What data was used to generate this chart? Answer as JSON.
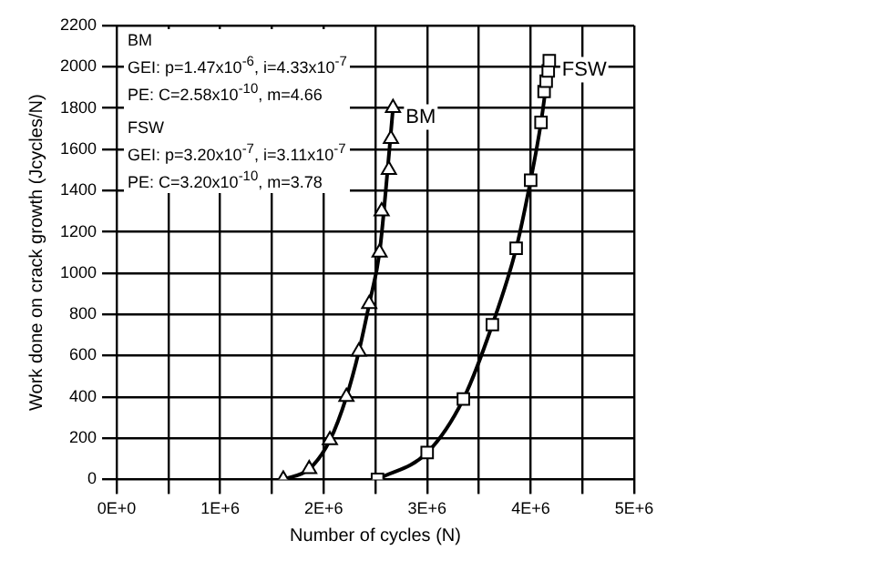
{
  "chart_data": {
    "type": "scatter",
    "xlabel": "Number of cycles (N)",
    "ylabel": "Work done on crack growth (Jcycles/N)",
    "xlim": [
      0,
      5000000
    ],
    "ylim": [
      0,
      2200
    ],
    "xticks": [
      {
        "value": 0,
        "label": "0E+0"
      },
      {
        "value": 500000,
        "label": null
      },
      {
        "value": 1000000,
        "label": "1E+6"
      },
      {
        "value": 1500000,
        "label": null
      },
      {
        "value": 2000000,
        "label": "2E+6"
      },
      {
        "value": 2500000,
        "label": null
      },
      {
        "value": 3000000,
        "label": "3E+6"
      },
      {
        "value": 3500000,
        "label": null
      },
      {
        "value": 4000000,
        "label": "4E+6"
      },
      {
        "value": 4500000,
        "label": null
      },
      {
        "value": 5000000,
        "label": "5E+6"
      }
    ],
    "yticks": [
      0,
      200,
      400,
      600,
      800,
      1000,
      1200,
      1400,
      1600,
      1800,
      2000,
      2200
    ],
    "grid": true,
    "legend": false,
    "series": [
      {
        "type": "scatter",
        "marker": "triangle",
        "color": "#000000",
        "x": [
          1610000,
          1860000,
          2060000,
          2220000,
          2340000,
          2440000,
          2540000,
          2560000,
          2630000,
          2650000,
          2670000
        ],
        "values": [
          0,
          50,
          190,
          400,
          620,
          850,
          1100,
          1300,
          1500,
          1650,
          1800
        ]
      },
      {
        "type": "scatter",
        "marker": "square",
        "color": "#000000",
        "x": [
          2520000,
          3000000,
          3350000,
          3630000,
          3860000,
          4000000,
          4100000,
          4130000,
          4150000,
          4170000,
          4180000
        ],
        "values": [
          0,
          130,
          390,
          750,
          1120,
          1450,
          1730,
          1880,
          1930,
          1980,
          2030
        ]
      },
      {
        "type": "line",
        "marker": "none",
        "color": "#000000",
        "x": [
          1610000,
          1860000,
          2060000,
          2220000,
          2340000,
          2440000,
          2540000,
          2600000,
          2670000
        ],
        "values": [
          0,
          50,
          190,
          400,
          620,
          850,
          1100,
          1400,
          1800
        ]
      },
      {
        "type": "line",
        "marker": "none",
        "color": "#000000",
        "x": [
          2520000,
          3000000,
          3350000,
          3630000,
          3860000,
          4000000,
          4100000,
          4180000
        ],
        "values": [
          0,
          130,
          390,
          750,
          1120,
          1450,
          1730,
          2030
        ]
      }
    ],
    "annotations": [
      "BM",
      "GEI: p=1.47x10$^{-6}$,  i=4.33x10$^{-7}$",
      "PE: C=2.58x10$^{-10}$, m=4.66",
      "FSW",
      "GEI: p=3.20x10$^{-7}$,  i=3.11x10$^{-7}$",
      "PE: C=3.20x10$^{-10}$, m=3.78",
      {
        "text": "BM",
        "x": 2670000,
        "y": 1800
      },
      {
        "text": "FSW",
        "x": 4180000,
        "y": 2030
      }
    ]
  }
}
